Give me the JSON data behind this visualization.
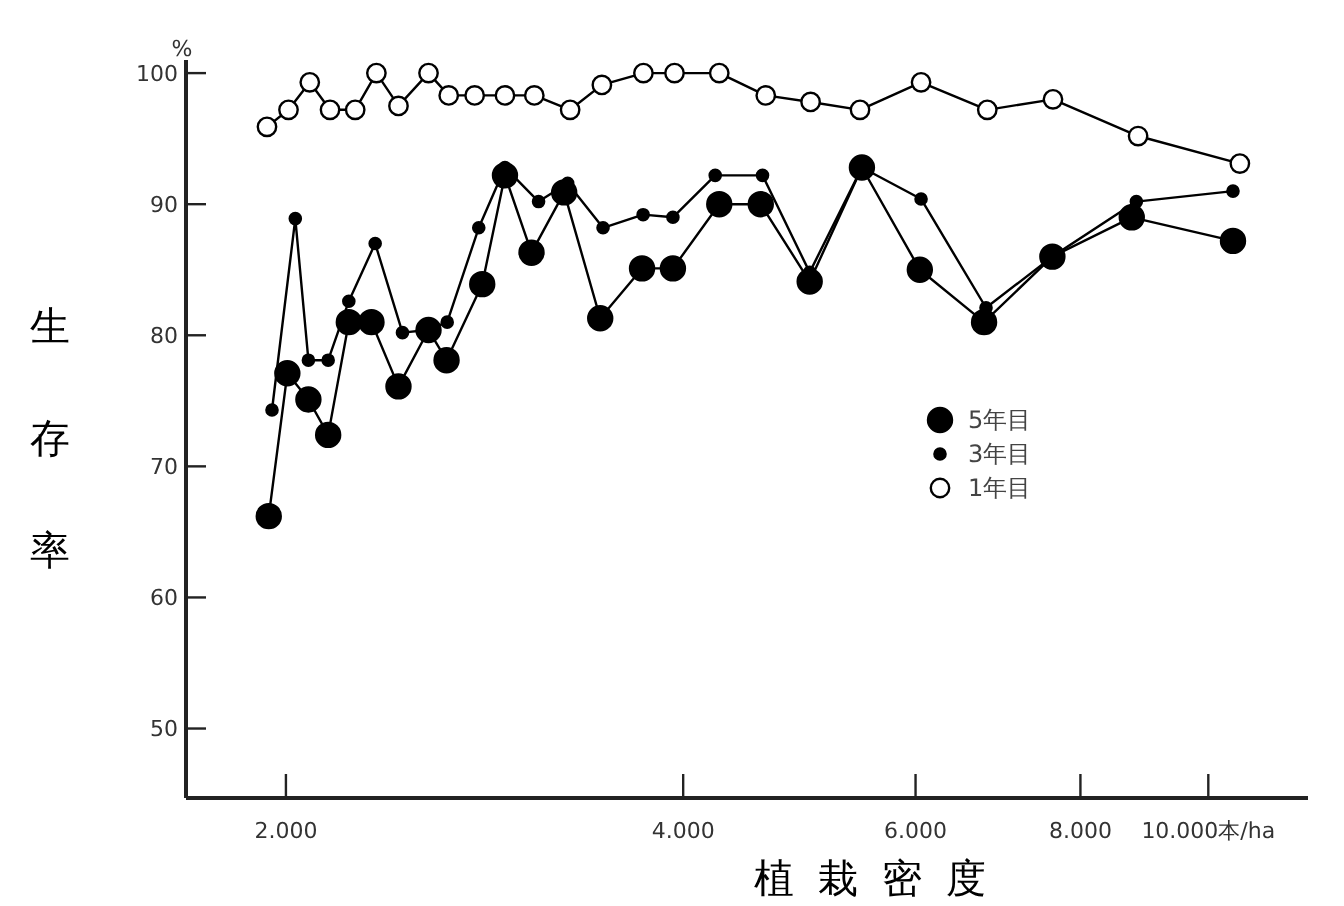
{
  "chart_data": {
    "type": "line",
    "xlabel": "植栽密度",
    "ylabel": "生存率",
    "annotations": [
      "%"
    ],
    "log": "x",
    "xlim": [
      1680,
      11900
    ],
    "xticks": [
      {
        "value": 2000,
        "label": "2.000"
      },
      {
        "value": 4000,
        "label": "4.000"
      },
      {
        "value": 6000,
        "label": "6.000"
      },
      {
        "value": 8000,
        "label": "8.000"
      },
      {
        "value": 10000,
        "label": "10.000本/ha"
      }
    ],
    "ylim": [
      44.7,
      101
    ],
    "yticks": [
      50,
      60,
      70,
      80,
      90,
      100
    ],
    "grid": false,
    "legend": "right",
    "marker": "circle",
    "line_style": "solid",
    "series": [
      {
        "name": "5年目",
        "color": "#000000",
        "x": [
          1941,
          2005,
          2080,
          2153,
          2232,
          2322,
          2434,
          2565,
          2647,
          2817,
          2931,
          3070,
          3250,
          3461,
          3723,
          3929,
          4260,
          4580,
          4988,
          5464,
          6045,
          6762,
          7618,
          8750,
          10440
        ],
        "values": [
          66.2,
          77.1,
          75.1,
          72.4,
          81.0,
          81.0,
          76.1,
          80.4,
          78.1,
          83.9,
          92.2,
          86.3,
          90.9,
          81.3,
          85.1,
          85.1,
          90.0,
          90.0,
          84.1,
          92.8,
          85.0,
          81.0,
          86.0,
          89.0,
          87.2
        ]
      },
      {
        "name": "3年目",
        "color": "#000000",
        "x": [
          1952,
          2033,
          2080,
          2153,
          2232,
          2337,
          2451,
          2560,
          2650,
          2800,
          2931,
          3108,
          3270,
          3478,
          3730,
          3929,
          4230,
          4594,
          4988,
          5464,
          6058,
          6785,
          7618,
          8820,
          10440
        ],
        "values": [
          74.3,
          88.9,
          78.1,
          78.1,
          82.6,
          87.0,
          80.2,
          80.4,
          81.0,
          88.2,
          92.8,
          90.2,
          91.6,
          88.2,
          89.2,
          89.0,
          92.2,
          92.2,
          84.8,
          92.8,
          90.4,
          82.1,
          86.0,
          90.2,
          91.0
        ]
      },
      {
        "name": "1年目",
        "color": "#000000",
        "x": [
          1935,
          2009,
          2085,
          2160,
          2257,
          2342,
          2434,
          2565,
          2657,
          2780,
          2931,
          3085,
          3284,
          3471,
          3732,
          3940,
          4260,
          4620,
          4996,
          5446,
          6058,
          6800,
          7626,
          8847,
          10566
        ],
        "values": [
          95.9,
          97.2,
          99.3,
          97.2,
          97.2,
          100,
          97.5,
          100,
          98.3,
          98.3,
          98.3,
          98.3,
          97.2,
          99.1,
          100,
          100,
          100,
          98.3,
          97.8,
          97.2,
          99.3,
          97.2,
          98,
          95.2,
          93.1
        ]
      }
    ]
  }
}
